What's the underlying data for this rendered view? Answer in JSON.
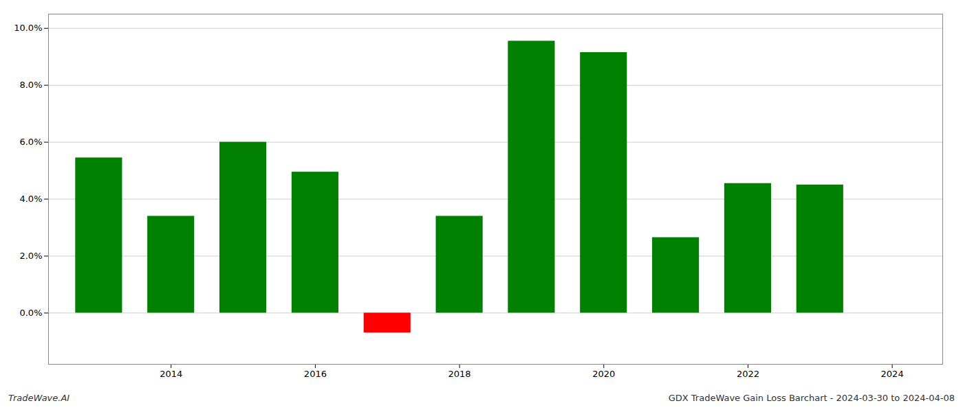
{
  "chart_data": {
    "type": "bar",
    "x": [
      2013,
      2014,
      2015,
      2016,
      2017,
      2018,
      2019,
      2020,
      2021,
      2022,
      2023
    ],
    "values": [
      0.0545,
      0.034,
      0.06,
      0.0495,
      -0.007,
      0.034,
      0.0955,
      0.0915,
      0.0265,
      0.0455,
      0.045
    ],
    "colors": [
      "#008000",
      "#008000",
      "#008000",
      "#008000",
      "#ff0000",
      "#008000",
      "#008000",
      "#008000",
      "#008000",
      "#008000",
      "#008000"
    ],
    "xlim": [
      2012.3,
      2024.7
    ],
    "xticks": [
      2014,
      2016,
      2018,
      2020,
      2022,
      2024
    ],
    "ylim": [
      -0.018,
      0.105
    ],
    "yticks": [
      {
        "value": 0.0,
        "label": "0.0%"
      },
      {
        "value": 0.02,
        "label": "2.0%"
      },
      {
        "value": 0.04,
        "label": "4.0%"
      },
      {
        "value": 0.06,
        "label": "6.0%"
      },
      {
        "value": 0.08,
        "label": "8.0%"
      },
      {
        "value": 0.1,
        "label": "10.0%"
      }
    ],
    "grid": true,
    "annotations": [
      "TradeWave.AI",
      "GDX TradeWave Gain Loss Barchart - 2024-03-30 to 2024-04-08"
    ]
  }
}
